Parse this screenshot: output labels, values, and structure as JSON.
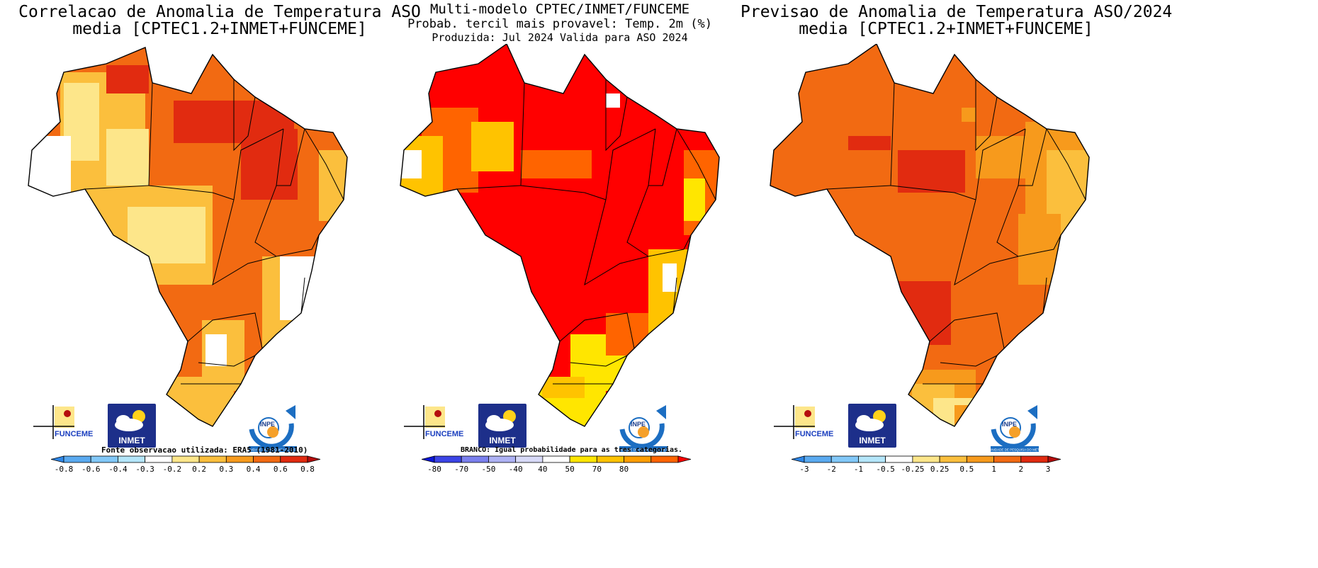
{
  "panels": [
    {
      "title_line1": "Correlacao de Anomalia de Temperatura ASO",
      "title_line2": "media [CPTEC1.2+INMET+FUNCEME]",
      "note": "Fonte observacao utilizada: ERA5 (1981-2010)",
      "scale_colors": [
        "#2e86e6",
        "#5aaaf0",
        "#82c8f8",
        "#b4e6fa",
        "#ffffff",
        "#fde68a",
        "#fbbf3d",
        "#f79a1c",
        "#f26a12",
        "#e12b10",
        "#b50d0d"
      ],
      "scale_labels": [
        "-0.8",
        "-0.6",
        "-0.4",
        "-0.3",
        "-0.2",
        "0.2",
        "0.3",
        "0.4",
        "0.6",
        "0.8"
      ]
    },
    {
      "title_line1": "Multi-modelo CPTEC/INMET/FUNCEME",
      "title_line2": "Probab. tercil mais provavel: Temp. 2m (%)",
      "title_line3": "Produzida: Jul 2024  Valida para ASO 2024",
      "note": "BRANCO: Igual probabilidade para as tres categorias.",
      "scale_colors": [
        "#0b16d8",
        "#3b44e6",
        "#7b80ee",
        "#aeb2f4",
        "#d8daf8",
        "#ffffff",
        "#ffe600",
        "#ffc300",
        "#ff9d00",
        "#ff6400",
        "#ff0000"
      ],
      "scale_labels": [
        "-80",
        "-70",
        "-50",
        "-40",
        "40",
        "50",
        "70",
        "80"
      ]
    },
    {
      "title_line1": "Previsao de Anomalia de Temperatura ASO/2024",
      "title_line2": "media [CPTEC1.2+INMET+FUNCEME]",
      "note": "",
      "scale_colors": [
        "#2e86e6",
        "#5aaaf0",
        "#82c8f8",
        "#b4e6fa",
        "#ffffff",
        "#fde68a",
        "#fbbf3d",
        "#f79a1c",
        "#f26a12",
        "#e12b10",
        "#b50d0d"
      ],
      "scale_labels": [
        "-3",
        "-2",
        "-1",
        "-0.5",
        "-0.25",
        "0.25",
        "0.5",
        "1",
        "2",
        "3"
      ]
    }
  ],
  "logos": {
    "funceme": "FUNCEME",
    "inmet": "INMET",
    "inpe": "INPE",
    "inpe_sub": "UNIDADE DE PESQUISA DO METI"
  }
}
